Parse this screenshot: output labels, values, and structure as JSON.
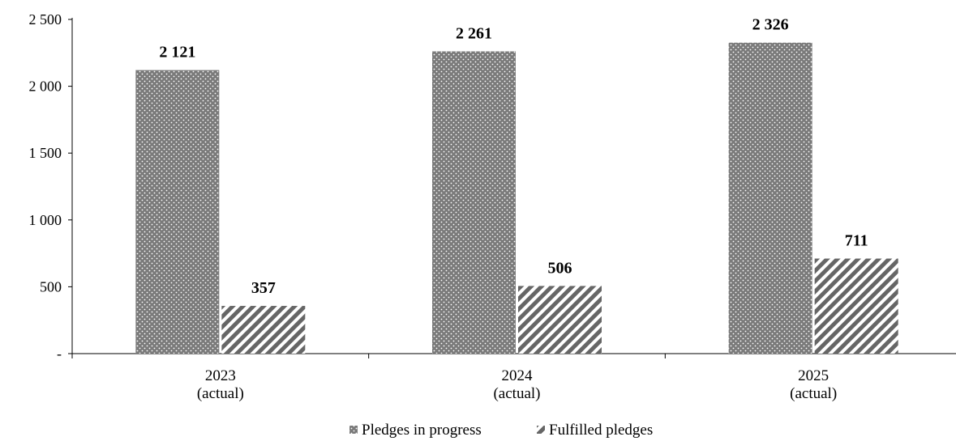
{
  "chart_data": {
    "type": "bar",
    "categories": [
      "2023\n(actual)",
      "2024\n(actual)",
      "2025\n(actual)"
    ],
    "series": [
      {
        "name": "Pledges in progress",
        "values": [
          2121,
          2261,
          2326
        ],
        "labels": [
          "2 121",
          "2 261",
          "2 326"
        ],
        "pattern": "dots",
        "color": "#777777"
      },
      {
        "name": "Fulfilled pledges",
        "values": [
          357,
          506,
          711
        ],
        "labels": [
          "357",
          "506",
          "711"
        ],
        "pattern": "diagonal-stripes",
        "color": "#666666"
      }
    ],
    "yticks": [
      0,
      500,
      1000,
      1500,
      2000,
      2500
    ],
    "ytick_labels": [
      "-",
      "500",
      "1 000",
      "1 500",
      "2 000",
      "2 500"
    ],
    "ylim": [
      0,
      2500
    ],
    "title": "",
    "xlabel": "",
    "ylabel": "",
    "grid": false,
    "legend": "bottom-center"
  }
}
